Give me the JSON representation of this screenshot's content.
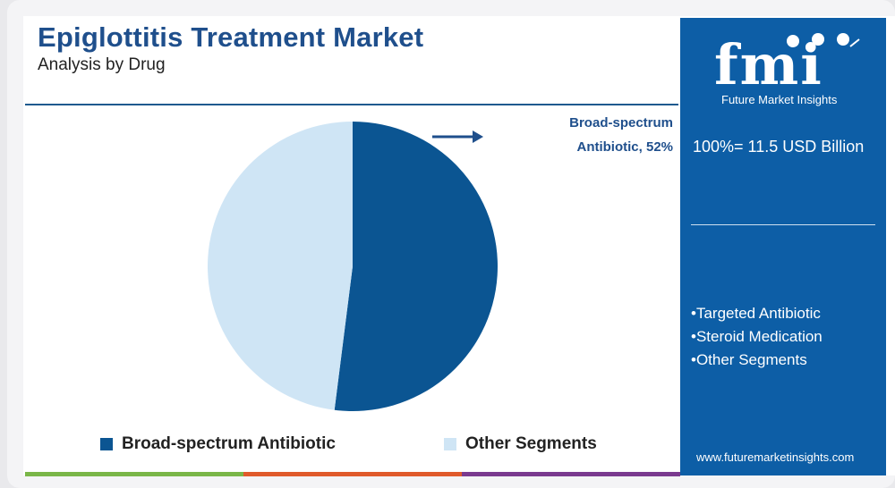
{
  "header": {
    "title": "Epiglottitis Treatment Market",
    "subtitle": "Analysis by Drug"
  },
  "callout": {
    "line1": "Broad-spectrum",
    "line2": "Antibiotic, 52%"
  },
  "sidebar": {
    "brand": "Future Market Insights",
    "logo_letters": "fmi",
    "total_label": "100%= 11.5 USD Billion",
    "segments": [
      "Targeted Antibiotic",
      "Steroid Medication",
      "Other Segments"
    ],
    "website": "www.futuremarketinsights.com"
  },
  "colors": {
    "brand_blue": "#1f4f8c",
    "sidebar_blue": "#0d5ea6",
    "series_dark": "#0b5592",
    "series_light": "#cfe5f5",
    "bar_green": "#7ab648",
    "bar_orange": "#e05a2b",
    "bar_purple": "#7a3a8f"
  },
  "chart_data": {
    "type": "pie",
    "title": "Epiglottitis Treatment Market",
    "subtitle": "Analysis by Drug",
    "categories": [
      "Broad-spectrum Antibiotic",
      "Other Segments"
    ],
    "values": [
      52,
      48
    ],
    "unit": "%",
    "legend": "bottom",
    "colors": [
      "#0b5592",
      "#cfe5f5"
    ]
  }
}
